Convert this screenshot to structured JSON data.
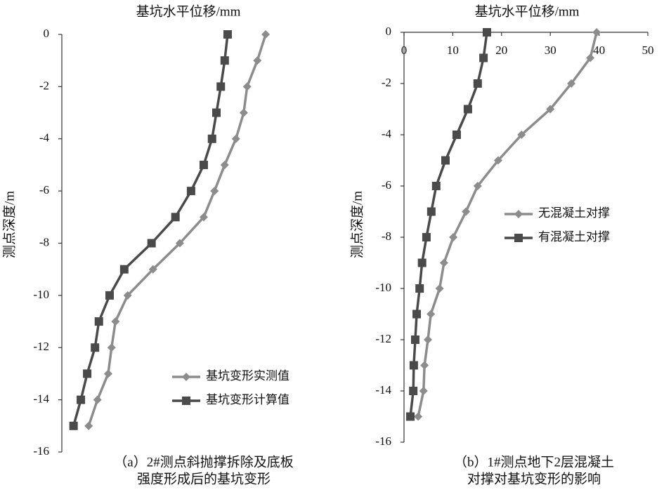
{
  "chart_data": [
    {
      "type": "line",
      "title": "基坑水平位移/mm",
      "y_label": "测点深度/m",
      "caption": [
        "（a）2#测点斜抛撑拆除及底板",
        "强度形成后的基坑变形"
      ],
      "y": [
        0,
        -1,
        -2,
        -3,
        -4,
        -5,
        -6,
        -7,
        -8,
        -9,
        -10,
        -11,
        -12,
        -13,
        -14,
        -15
      ],
      "ylim": [
        -16,
        0
      ],
      "yticks": [
        0,
        -2,
        -4,
        -6,
        -8,
        -10,
        -12,
        -14,
        -16
      ],
      "xlim": [
        0,
        50
      ],
      "series": [
        {
          "name": "基坑变形实测值",
          "color": "#8c8c8c",
          "marker": "diamond",
          "values": [
            41.8,
            40.1,
            38.0,
            37.3,
            35.7,
            33.4,
            31.3,
            29.1,
            24.2,
            18.7,
            13.5,
            11.0,
            10.2,
            9.5,
            7.3,
            5.5
          ]
        },
        {
          "name": "基坑变形计算值",
          "color": "#4a4a4a",
          "marker": "square",
          "values": [
            34.0,
            33.4,
            32.6,
            31.7,
            30.8,
            29.1,
            26.5,
            23.3,
            18.4,
            12.8,
            9.8,
            7.6,
            6.8,
            5.2,
            3.9,
            2.4
          ]
        }
      ]
    },
    {
      "type": "line",
      "title": "基坑水平位移/mm",
      "y_label": "测点深度/m",
      "caption": [
        "（b）1#测点地下2层混凝土",
        "对撑对基坑变形的影响"
      ],
      "y": [
        0,
        -1,
        -2,
        -3,
        -4,
        -5,
        -6,
        -7,
        -8,
        -9,
        -10,
        -11,
        -12,
        -13,
        -14,
        -15
      ],
      "ylim": [
        -16,
        0
      ],
      "yticks": [
        0,
        -2,
        -4,
        -6,
        -8,
        -10,
        -12,
        -14,
        -16
      ],
      "xlim": [
        0,
        50
      ],
      "xticks": [
        0,
        10,
        20,
        30,
        40,
        50
      ],
      "series": [
        {
          "name": "无混凝土对撑",
          "color": "#8c8c8c",
          "marker": "diamond",
          "values": [
            39.5,
            38.2,
            34.3,
            30.0,
            24.1,
            19.3,
            15.1,
            12.7,
            10.1,
            8.2,
            7.3,
            5.5,
            4.9,
            4.2,
            4.0,
            2.9
          ]
        },
        {
          "name": "有混凝土对撑",
          "color": "#4a4a4a",
          "marker": "square",
          "values": [
            17.0,
            16.3,
            15.1,
            13.1,
            10.8,
            8.5,
            6.6,
            5.6,
            4.6,
            3.7,
            3.2,
            2.6,
            2.3,
            2.0,
            1.9,
            1.3
          ]
        }
      ]
    }
  ]
}
